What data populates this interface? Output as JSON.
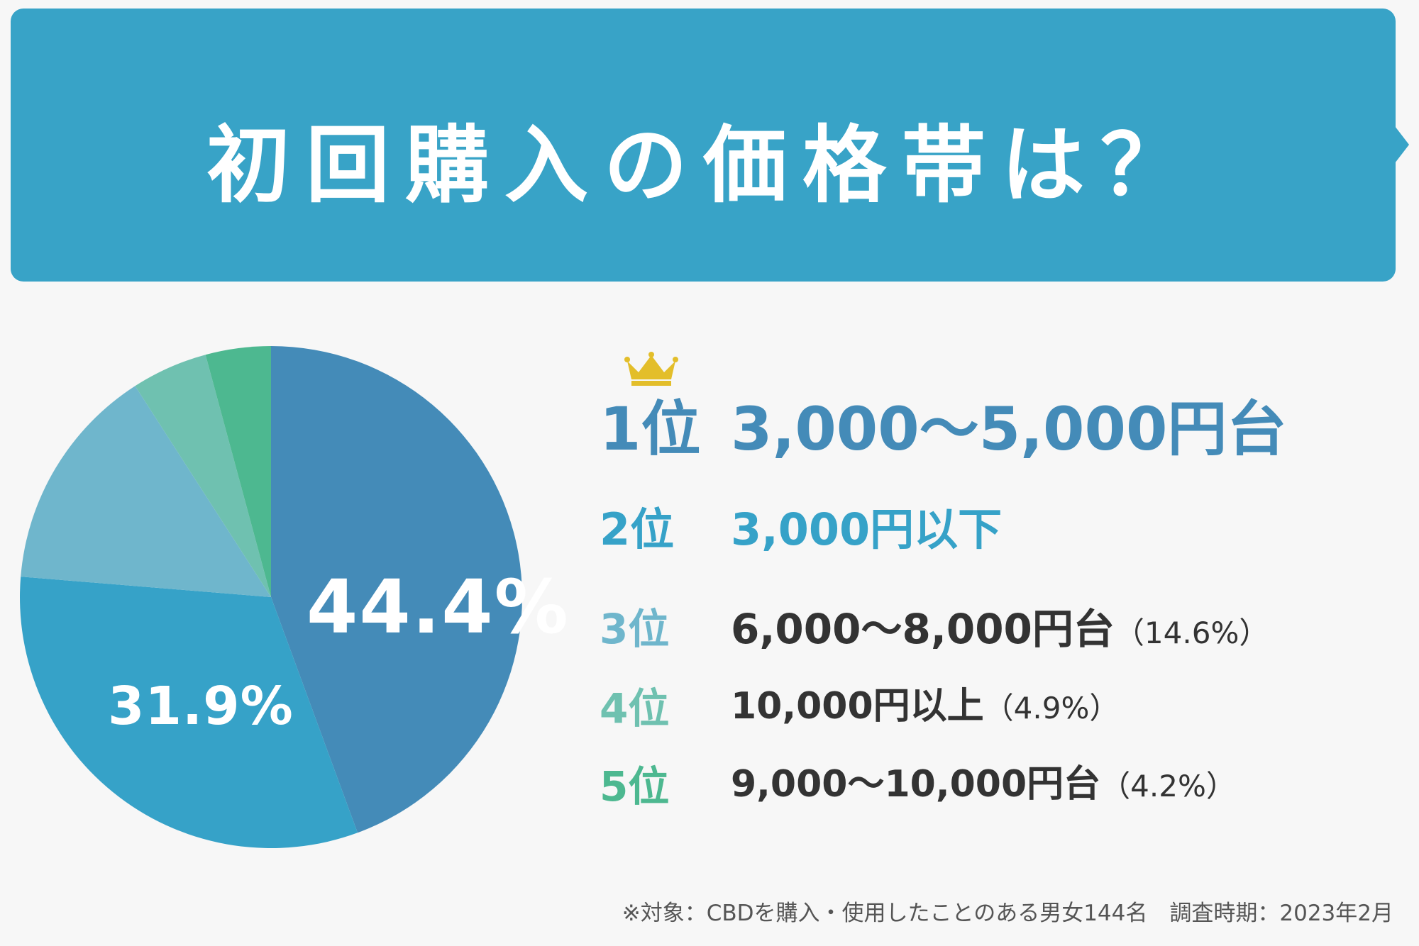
{
  "header": {
    "title": "初回購入の価格帯は？"
  },
  "chart_data": {
    "type": "pie",
    "slices": [
      {
        "label": "3,000〜5,000円台",
        "value": 44.4,
        "color": "#448bb8",
        "display": "44.4%"
      },
      {
        "label": "3,000円以下",
        "value": 31.9,
        "color": "#36a2c8",
        "display": "31.9%"
      },
      {
        "label": "6,000〜8,000円台",
        "value": 14.6,
        "color": "#6fb6cc",
        "display": ""
      },
      {
        "label": "10,000円以上",
        "value": 4.9,
        "color": "#6fc1b0",
        "display": ""
      },
      {
        "label": "9,000〜10,000円台",
        "value": 4.2,
        "color": "#4db890",
        "display": ""
      }
    ],
    "start": "top",
    "direction": "clockwise"
  },
  "ranking": [
    {
      "rank": "1位",
      "value": "3,000〜5,000円台",
      "pct": "",
      "rank_color": "#448bb8",
      "value_color": "#448bb8"
    },
    {
      "rank": "2位",
      "value": "3,000円以下",
      "pct": "",
      "rank_color": "#36a2c8",
      "value_color": "#36a2c8"
    },
    {
      "rank": "3位",
      "value": "6,000〜8,000円台",
      "pct": "（14.6%）",
      "rank_color": "#6fb6cc",
      "value_color": "#333333"
    },
    {
      "rank": "4位",
      "value": "10,000円以上",
      "pct": "（4.9%）",
      "rank_color": "#6fc1b0",
      "value_color": "#333333"
    },
    {
      "rank": "5位",
      "value": "9,000〜10,000円台",
      "pct": "（4.2%）",
      "rank_color": "#4db890",
      "value_color": "#333333"
    }
  ],
  "crown": {
    "icon": "crown-icon",
    "color": "#e3be2a"
  },
  "footnote": "※対象：CBDを購入・使用したことのある男女144名　調査時期：2023年2月"
}
